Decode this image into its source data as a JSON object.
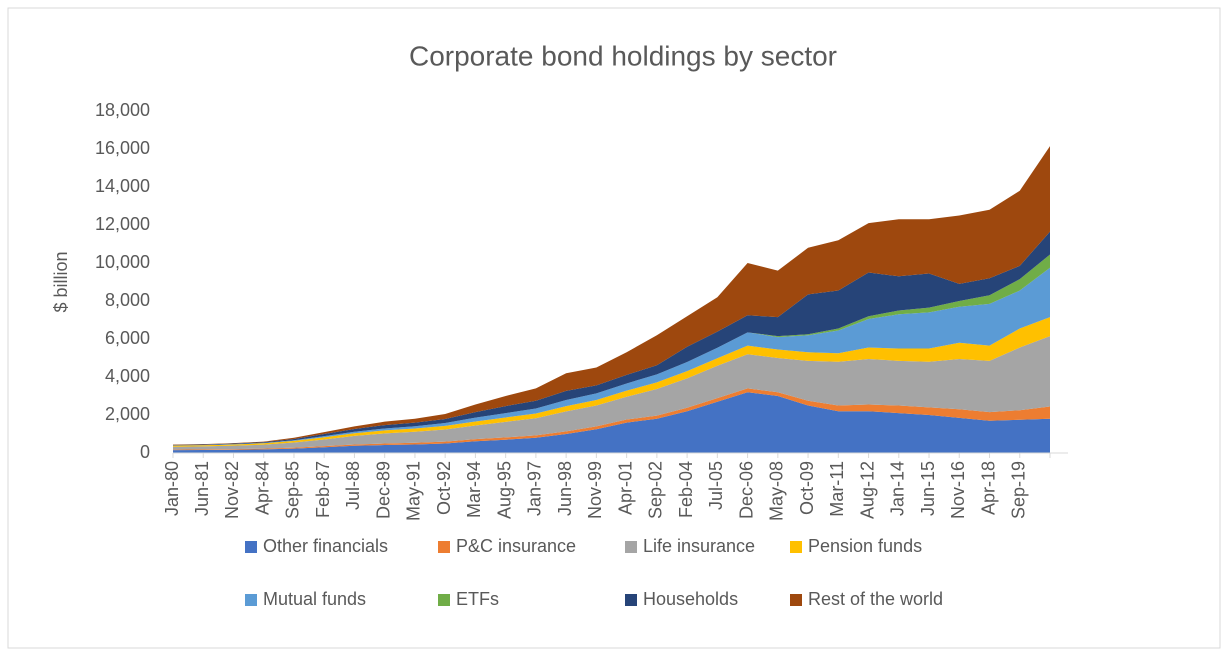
{
  "chart_data": {
    "type": "stacked_area",
    "title": "Corporate bond holdings by sector",
    "y_label": "$ billion",
    "categories": [
      "Jan-80",
      "Jun-81",
      "Nov-82",
      "Apr-84",
      "Sep-85",
      "Feb-87",
      "Jul-88",
      "Dec-89",
      "May-91",
      "Oct-92",
      "Mar-94",
      "Aug-95",
      "Jan-97",
      "Jun-98",
      "Nov-99",
      "Apr-01",
      "Sep-02",
      "Feb-04",
      "Jul-05",
      "Dec-06",
      "May-08",
      "Oct-09",
      "Mar-11",
      "Aug-12",
      "Jan-14",
      "Jun-15",
      "Nov-16",
      "Apr-18",
      "Sep-19",
      null
    ],
    "ylim": [
      0,
      18000
    ],
    "yticks": [
      0,
      {
        "value": 2000,
        "label": "2,000"
      },
      {
        "value": 4000,
        "label": "4,000"
      },
      {
        "value": 6000,
        "label": "6,000"
      },
      {
        "value": 8000,
        "label": "8,000"
      },
      {
        "value": 10000,
        "label": "10,000"
      },
      {
        "value": 12000,
        "label": "12,000"
      },
      {
        "value": 14000,
        "label": "14,000"
      },
      {
        "value": 16000,
        "label": "16,000"
      },
      {
        "value": 18000,
        "label": "18,000"
      }
    ],
    "series": [
      {
        "name": "Other financials",
        "color": "#4472c4",
        "values": [
          150,
          160,
          170,
          190,
          230,
          300,
          380,
          420,
          450,
          500,
          620,
          700,
          800,
          1000,
          1250,
          1600,
          1800,
          2200,
          2700,
          3200,
          3000,
          2500,
          2200,
          2200,
          2100,
          2000,
          1850,
          1700,
          1750,
          1800
        ]
      },
      {
        "name": "P&C insurance",
        "color": "#ed7d31",
        "values": [
          30,
          30,
          35,
          40,
          50,
          60,
          70,
          80,
          90,
          100,
          110,
          120,
          130,
          140,
          150,
          160,
          170,
          180,
          190,
          200,
          200,
          250,
          300,
          350,
          400,
          400,
          450,
          450,
          500,
          650
        ]
      },
      {
        "name": "Life insurance",
        "color": "#a5a5a5",
        "values": [
          150,
          160,
          180,
          210,
          270,
          350,
          450,
          530,
          580,
          640,
          720,
          820,
          900,
          1050,
          1100,
          1200,
          1400,
          1550,
          1700,
          1800,
          1800,
          2100,
          2300,
          2400,
          2350,
          2400,
          2650,
          2700,
          3300,
          3700
        ]
      },
      {
        "name": "Pension funds",
        "color": "#ffc000",
        "values": [
          60,
          60,
          65,
          70,
          90,
          120,
          140,
          160,
          170,
          190,
          210,
          230,
          250,
          280,
          290,
          320,
          350,
          380,
          400,
          450,
          450,
          450,
          450,
          600,
          650,
          700,
          850,
          800,
          1000,
          1000
        ]
      },
      {
        "name": "Mutual funds",
        "color": "#5b9bd5",
        "values": [
          10,
          10,
          15,
          20,
          30,
          60,
          80,
          100,
          120,
          150,
          200,
          230,
          260,
          320,
          350,
          380,
          420,
          480,
          550,
          700,
          650,
          900,
          1200,
          1500,
          1800,
          1900,
          1900,
          2200,
          2000,
          2600
        ]
      },
      {
        "name": "ETFs",
        "color": "#70ad47",
        "values": [
          0,
          0,
          0,
          0,
          0,
          0,
          0,
          0,
          0,
          0,
          0,
          0,
          0,
          0,
          0,
          0,
          0,
          0,
          0,
          0,
          50,
          50,
          100,
          150,
          200,
          250,
          300,
          450,
          600,
          700
        ]
      },
      {
        "name": "Households",
        "color": "#264478",
        "values": [
          30,
          30,
          35,
          40,
          70,
          110,
          140,
          180,
          190,
          210,
          290,
          370,
          410,
          480,
          420,
          450,
          480,
          800,
          850,
          900,
          1000,
          2100,
          2000,
          2300,
          1800,
          1800,
          900,
          900,
          700,
          1200
        ]
      },
      {
        "name": "Rest of the world",
        "color": "#9e480e",
        "values": [
          20,
          20,
          20,
          30,
          60,
          100,
          140,
          180,
          200,
          260,
          400,
          530,
          650,
          930,
          940,
          1190,
          1580,
          1610,
          1810,
          2750,
          2450,
          2450,
          2650,
          2600,
          3000,
          2850,
          3600,
          3600,
          3950,
          4500
        ]
      }
    ]
  }
}
